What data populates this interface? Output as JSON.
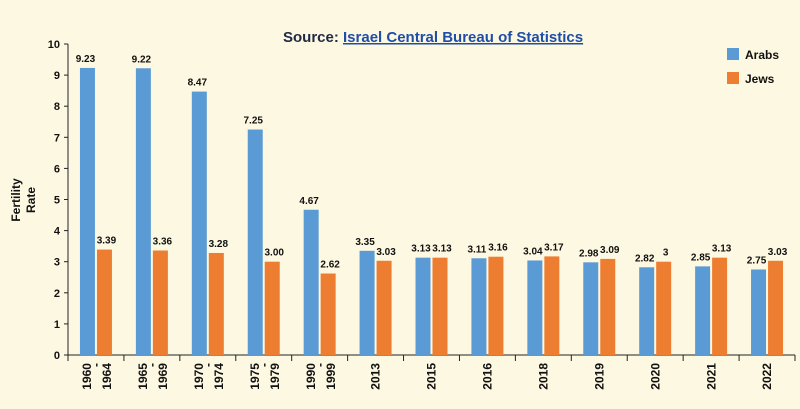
{
  "title": {
    "prefix": "Source: ",
    "link": "Israel Central Bureau of Statistics"
  },
  "chart_data": {
    "type": "bar",
    "title": "Source: Israel Central Bureau of Statistics",
    "ylabel": "Fertility Rate",
    "ylabel_lines": [
      "Fertility",
      "Rate"
    ],
    "xlabel": "",
    "ylim": [
      0,
      10
    ],
    "yticks": [
      0,
      1,
      2,
      3,
      4,
      5,
      6,
      7,
      8,
      9,
      10
    ],
    "grid": false,
    "legend_position": "top-right",
    "categories": [
      "1960 - 1964",
      "1965 - 1969",
      "1970 - 1974",
      "1975 - 1979",
      "1990 - 1999",
      "2013",
      "2015",
      "2016",
      "2018",
      "2019",
      "2020",
      "2021",
      "2022"
    ],
    "category_label_parts": [
      [
        "1960",
        "-",
        "1964"
      ],
      [
        "1965",
        "-",
        "1969"
      ],
      [
        "1970",
        "-",
        "1974"
      ],
      [
        "1975",
        "-",
        "1979"
      ],
      [
        "1990",
        "-",
        "1999"
      ],
      [
        "2013"
      ],
      [
        "2015"
      ],
      [
        "2016"
      ],
      [
        "2018"
      ],
      [
        "2019"
      ],
      [
        "2020"
      ],
      [
        "2021"
      ],
      [
        "2022"
      ]
    ],
    "series": [
      {
        "name": "Arabs",
        "color": "#5b9bd5",
        "values": [
          9.23,
          9.22,
          8.47,
          7.25,
          4.67,
          3.35,
          3.13,
          3.11,
          3.04,
          2.98,
          2.82,
          2.85,
          2.75
        ],
        "labels": [
          "9.23",
          "9.22",
          "8.47",
          "7.25",
          "4.67",
          "3.35",
          "3.13",
          "3.11",
          "3.04",
          "2.98",
          "2.82",
          "2.85",
          "2.75"
        ]
      },
      {
        "name": "Jews",
        "color": "#ed7d31",
        "values": [
          3.39,
          3.36,
          3.28,
          3.0,
          2.62,
          3.03,
          3.13,
          3.16,
          3.17,
          3.09,
          3,
          3.13,
          3.03
        ],
        "labels": [
          "3.39",
          "3.36",
          "3.28",
          "3.00",
          "2.62",
          "3.03",
          "3.13",
          "3.16",
          "3.17",
          "3.09",
          "3",
          "3.13",
          "3.03"
        ]
      }
    ]
  }
}
